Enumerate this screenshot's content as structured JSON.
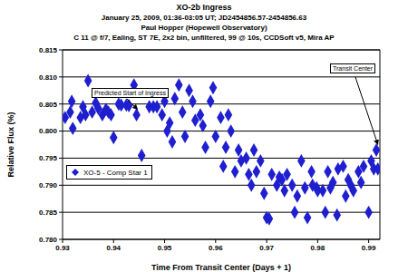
{
  "chart_data": {
    "type": "scatter",
    "title": "XO-2b Ingress",
    "subtitle": [
      "January 25, 2009, 01:36-03:05 UT; JD2454856.57-2454856.63",
      "Paul Hopper (Hopewell Observatory)",
      "C 11 @ f/7, Ealing, ST 7E, 2x2 bin, unfiltered, 99 @ 10s, CCDSoft v5, Mira AP"
    ],
    "x_label": "Time From Transit Center (Days + 1)",
    "y_label": "Relative Flux (%)",
    "xlim": [
      0.93,
      0.9922
    ],
    "xticks": [
      0.93,
      0.94,
      0.95,
      0.96,
      0.97,
      0.98,
      0.99
    ],
    "ylim": [
      0.78,
      0.815
    ],
    "yticks": [
      {
        "value": 0.78,
        "label": "0.780"
      },
      {
        "value": 0.785,
        "label": "0.785"
      },
      {
        "value": 0.79,
        "label": "0.790"
      },
      {
        "value": 0.795,
        "label": "0.795"
      },
      {
        "value": 0.8,
        "label": "0.800"
      },
      {
        "value": 0.805,
        "label": "0.805"
      },
      {
        "value": 0.81,
        "label": "0.810"
      },
      {
        "value": 0.815,
        "label": "0.815"
      }
    ],
    "grid": true,
    "legend": "lower left",
    "annotations": [
      {
        "text": "Predicted Start of Ingress",
        "x": 0.9447,
        "y": 0.804
      },
      {
        "text": "Transit Center",
        "x": 0.9918,
        "y": 0.7975
      }
    ],
    "x": [
      0.9305,
      0.9315,
      0.9318,
      0.932,
      0.9335,
      0.934,
      0.9345,
      0.935,
      0.9358,
      0.9365,
      0.937,
      0.9378,
      0.9385,
      0.939,
      0.9395,
      0.94,
      0.941,
      0.9415,
      0.9425,
      0.943,
      0.944,
      0.9445,
      0.9455,
      0.947,
      0.9478,
      0.9485,
      0.9495,
      0.95,
      0.9505,
      0.951,
      0.9515,
      0.952,
      0.9528,
      0.9535,
      0.954,
      0.9548,
      0.9555,
      0.956,
      0.957,
      0.9575,
      0.958,
      0.959,
      0.9595,
      0.96,
      0.961,
      0.9615,
      0.962,
      0.9625,
      0.963,
      0.9638,
      0.9645,
      0.965,
      0.966,
      0.9665,
      0.967,
      0.9675,
      0.968,
      0.9688,
      0.9695,
      0.97,
      0.9705,
      0.971,
      0.972,
      0.9725,
      0.973,
      0.9735,
      0.974,
      0.975,
      0.9755,
      0.976,
      0.9768,
      0.9775,
      0.978,
      0.9788,
      0.979,
      0.9798,
      0.98,
      0.981,
      0.9815,
      0.982,
      0.9825,
      0.983,
      0.9838,
      0.984,
      0.985,
      0.9855,
      0.986,
      0.9865,
      0.987,
      0.988,
      0.9885,
      0.989,
      0.99,
      0.9905,
      0.991,
      0.9915,
      0.9918
    ],
    "series": [
      {
        "name": "XO-5 - Comp Star 1",
        "color": "#1f1fd0",
        "marker": "diamond",
        "values": [
          0.8025,
          0.8035,
          0.8055,
          0.8005,
          0.8025,
          0.8045,
          0.803,
          0.8093,
          0.8035,
          0.8052,
          0.8042,
          0.803,
          0.804,
          0.8035,
          0.803,
          0.7988,
          0.805,
          0.8048,
          0.8048,
          0.8047,
          0.8085,
          0.803,
          0.7955,
          0.8045,
          0.8045,
          0.8045,
          0.803,
          0.8055,
          0.8,
          0.8015,
          0.798,
          0.806,
          0.8085,
          0.8035,
          0.799,
          0.8075,
          0.8055,
          0.802,
          0.803,
          0.801,
          0.797,
          0.8055,
          0.808,
          0.799,
          0.8025,
          0.7935,
          0.797,
          0.803,
          0.8,
          0.7925,
          0.7965,
          0.7945,
          0.795,
          0.792,
          0.79,
          0.7965,
          0.7925,
          0.7945,
          0.7885,
          0.784,
          0.7838,
          0.792,
          0.79,
          0.7915,
          0.791,
          0.789,
          0.792,
          0.79,
          0.785,
          0.788,
          0.7945,
          0.7895,
          0.784,
          0.7925,
          0.79,
          0.7895,
          0.789,
          0.789,
          0.785,
          0.7925,
          0.7895,
          0.7905,
          0.7845,
          0.793,
          0.7935,
          0.788,
          0.791,
          0.79,
          0.789,
          0.7925,
          0.7905,
          0.7935,
          0.785,
          0.7945,
          0.793,
          0.7965,
          0.793
        ]
      }
    ]
  }
}
